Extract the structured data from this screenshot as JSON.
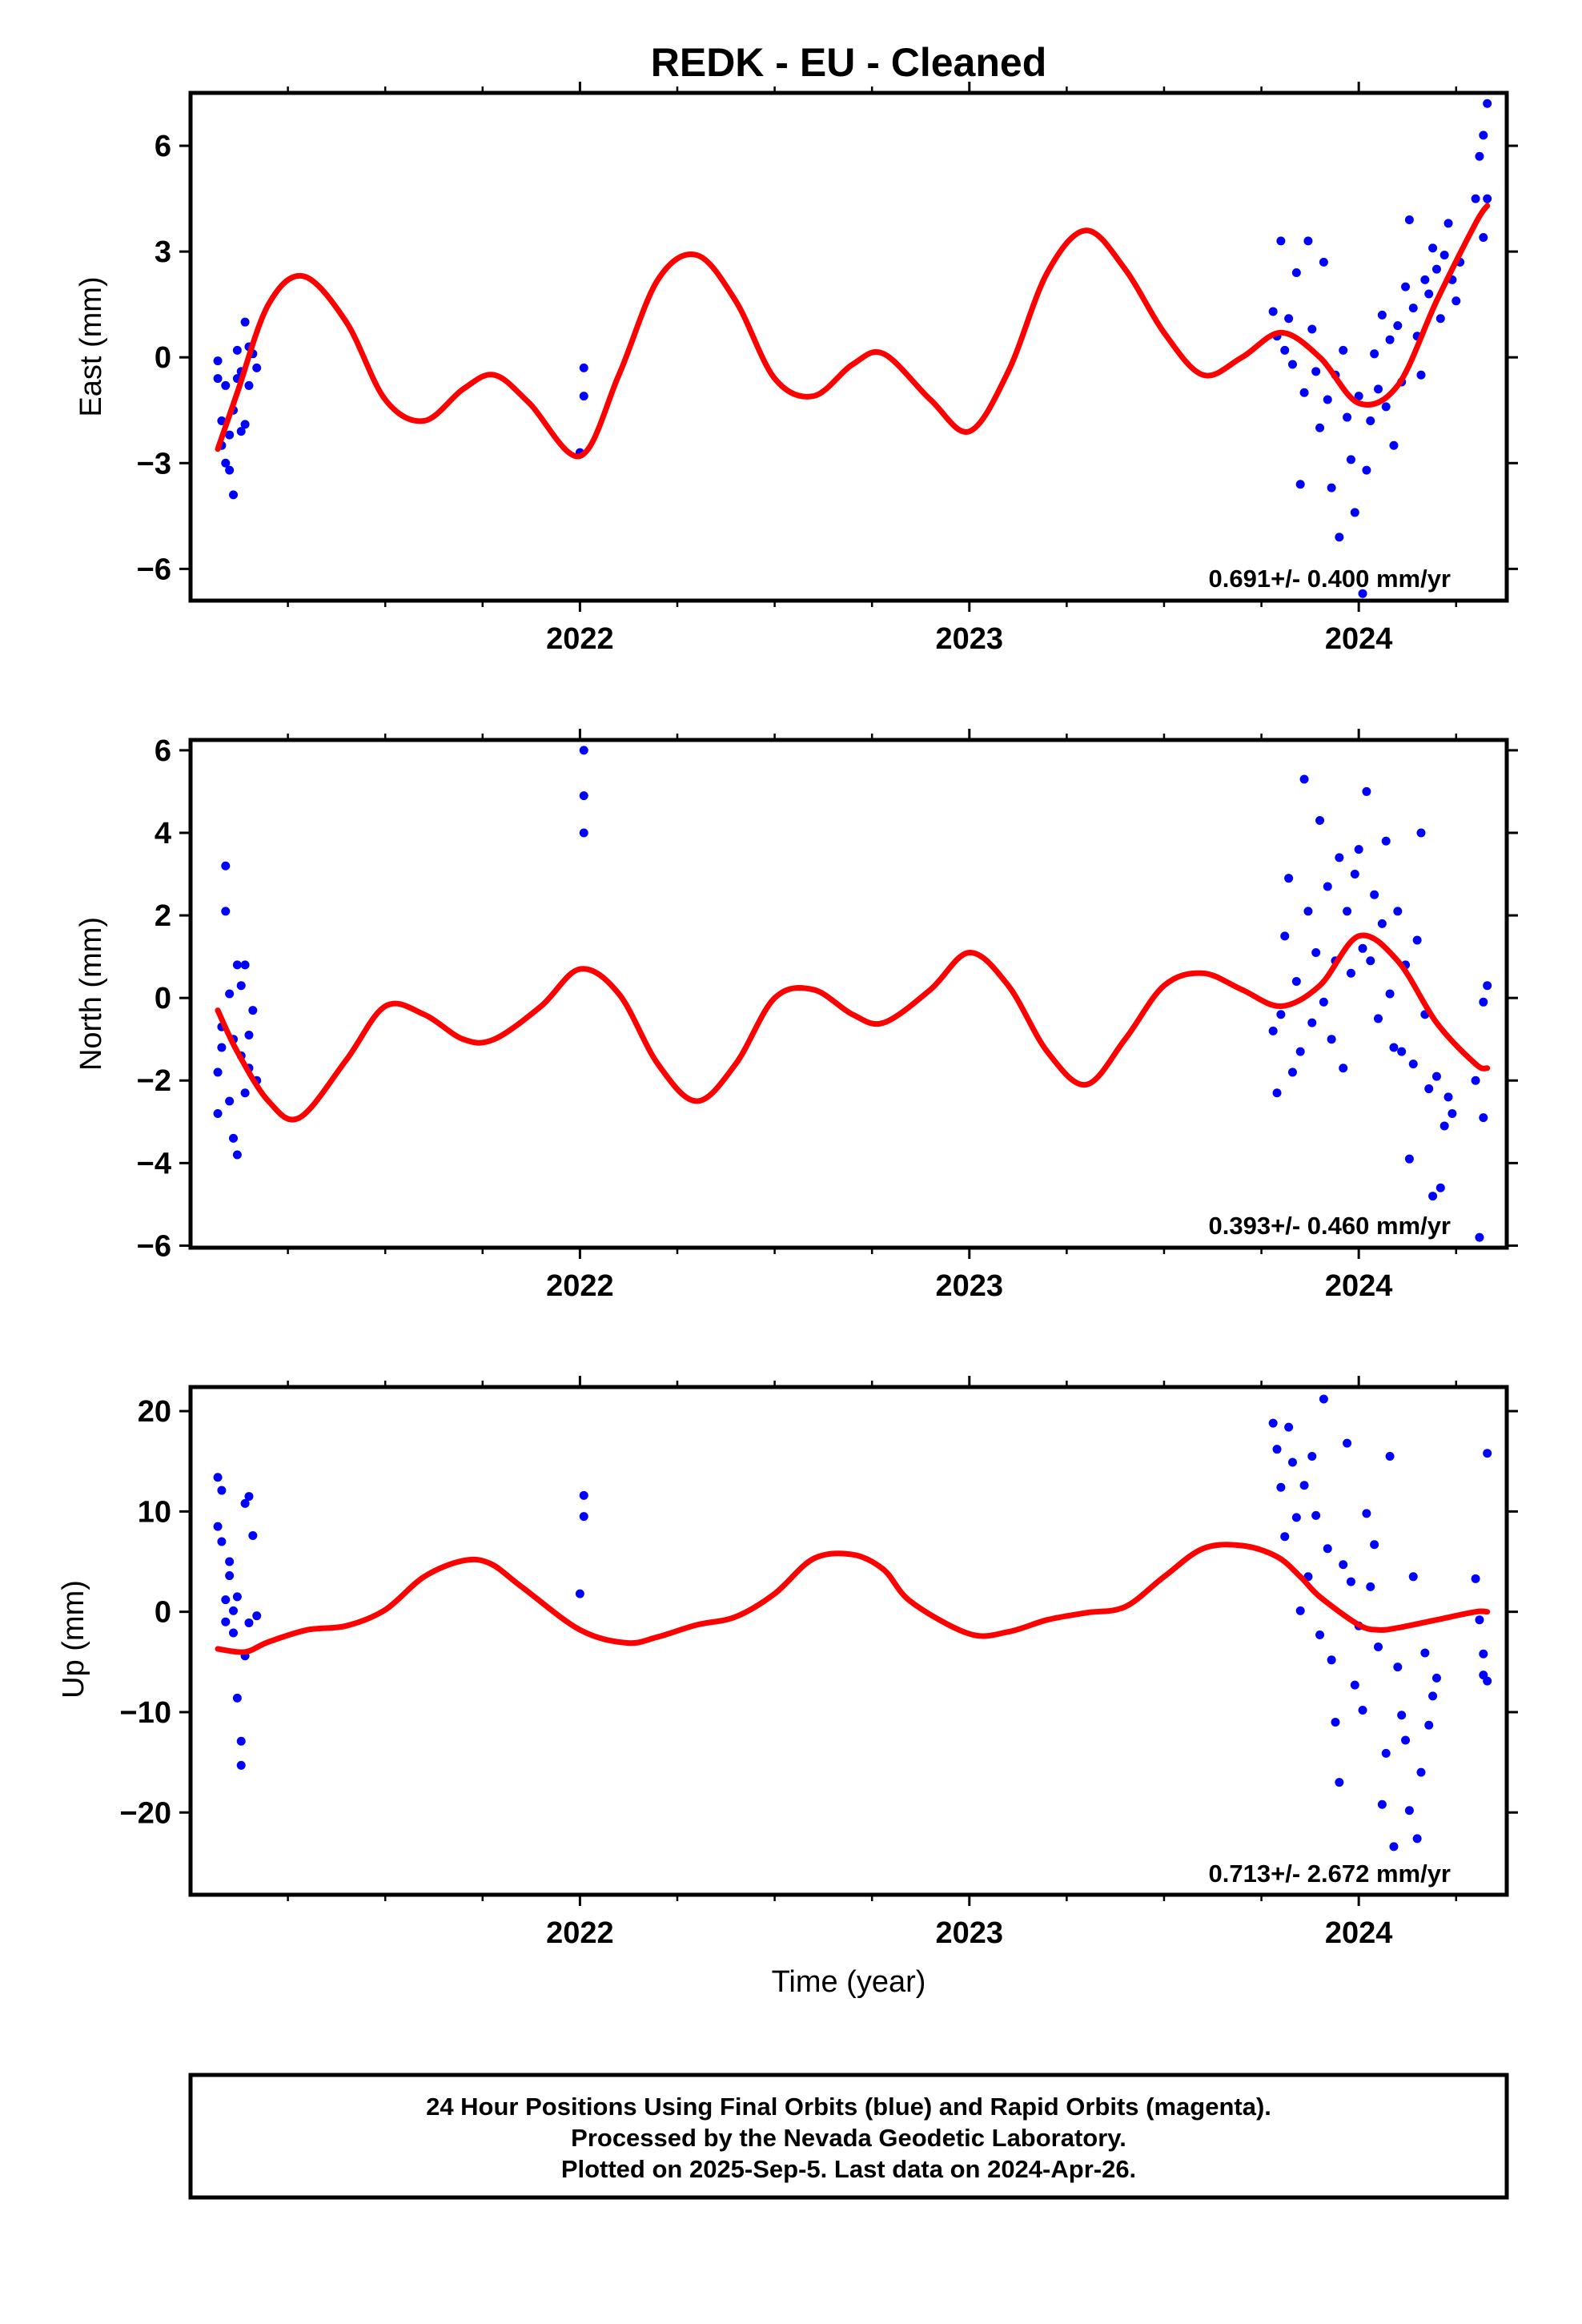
{
  "title": "REDK  - EU - Cleaned",
  "xlabel": "Time (year)",
  "footer": {
    "lines": [
      "24 Hour Positions Using Final Orbits (blue) and Rapid Orbits (magenta).",
      "Processed by the Nevada Geodetic Laboratory.",
      "Plotted on 2025-Sep-5. Last data on 2024-Apr-26."
    ]
  },
  "colors": {
    "points": "#0000ff",
    "fit": "#ff0000",
    "frame": "#000000"
  },
  "chart_data": [
    {
      "type": "scatter",
      "name": "east",
      "ylabel": "East (mm)",
      "rate_label": "0.691+/- 0.400 mm/yr",
      "xlim": [
        2021.0,
        2024.38
      ],
      "ylim": [
        -6.9,
        7.5
      ],
      "yticks": [
        -6,
        -3,
        0,
        3,
        6
      ],
      "ytick_labels": [
        "−6",
        "−3",
        "0",
        "3",
        "6"
      ],
      "xticks": [
        2022,
        2023,
        2024
      ],
      "xtick_labels": [
        "2022",
        "2023",
        "2024"
      ],
      "xminor": [
        2021.25,
        2021.5,
        2021.75,
        2022.25,
        2022.5,
        2022.75,
        2023.25,
        2023.5,
        2023.75,
        2024.25
      ],
      "fit": {
        "x": [
          2021.07,
          2021.12,
          2021.2,
          2021.29,
          2021.4,
          2021.5,
          2021.6,
          2021.7,
          2021.78,
          2021.87,
          2022.0,
          2022.1,
          2022.2,
          2022.3,
          2022.4,
          2022.5,
          2022.6,
          2022.7,
          2022.78,
          2022.9,
          2023.0,
          2023.1,
          2023.2,
          2023.3,
          2023.4,
          2023.5,
          2023.6,
          2023.7,
          2023.8,
          2023.9,
          2024.0,
          2024.1,
          2024.2,
          2024.3,
          2024.33
        ],
        "y": [
          -2.6,
          -1.0,
          1.5,
          2.3,
          1.0,
          -1.2,
          -1.8,
          -0.9,
          -0.5,
          -1.3,
          -2.8,
          -0.5,
          2.2,
          2.9,
          1.6,
          -0.6,
          -1.1,
          -0.2,
          0.1,
          -1.2,
          -2.1,
          -0.4,
          2.4,
          3.6,
          2.5,
          0.7,
          -0.5,
          0.0,
          0.7,
          0.0,
          -1.3,
          -0.8,
          1.6,
          3.8,
          4.3
        ]
      },
      "points": {
        "x": [
          2021.07,
          2021.07,
          2021.08,
          2021.08,
          2021.09,
          2021.09,
          2021.1,
          2021.1,
          2021.11,
          2021.11,
          2021.12,
          2021.12,
          2021.13,
          2021.13,
          2021.14,
          2021.14,
          2021.15,
          2021.15,
          2021.16,
          2021.17,
          2022.0,
          2022.01,
          2022.01,
          2023.78,
          2023.79,
          2023.8,
          2023.81,
          2023.82,
          2023.83,
          2023.84,
          2023.85,
          2023.86,
          2023.87,
          2023.88,
          2023.89,
          2023.9,
          2023.91,
          2023.92,
          2023.93,
          2023.94,
          2023.95,
          2023.96,
          2023.97,
          2023.98,
          2023.99,
          2024.0,
          2024.01,
          2024.02,
          2024.03,
          2024.04,
          2024.05,
          2024.06,
          2024.07,
          2024.08,
          2024.09,
          2024.1,
          2024.11,
          2024.12,
          2024.13,
          2024.14,
          2024.15,
          2024.16,
          2024.17,
          2024.18,
          2024.19,
          2024.2,
          2024.21,
          2024.22,
          2024.23,
          2024.24,
          2024.25,
          2024.26,
          2024.3,
          2024.31,
          2024.32,
          2024.32,
          2024.33,
          2024.33
        ],
        "y": [
          -0.6,
          -0.1,
          -2.5,
          -1.8,
          -3.0,
          -0.8,
          -2.2,
          -3.2,
          -1.5,
          -3.9,
          -0.6,
          0.2,
          -2.1,
          -0.4,
          1.0,
          -1.9,
          0.3,
          -0.8,
          0.1,
          -0.3,
          -2.7,
          -1.1,
          -0.3,
          1.3,
          0.6,
          3.3,
          0.2,
          1.1,
          -0.2,
          2.4,
          -3.6,
          -1.0,
          3.3,
          0.8,
          -0.4,
          -2.0,
          2.7,
          -1.2,
          -3.7,
          -0.5,
          -5.1,
          0.2,
          -1.7,
          -2.9,
          -4.4,
          -1.1,
          -6.7,
          -3.2,
          -1.8,
          0.1,
          -0.9,
          1.2,
          -1.4,
          0.5,
          -2.5,
          0.9,
          -0.7,
          2.0,
          3.9,
          1.4,
          0.6,
          -0.5,
          2.2,
          1.8,
          3.1,
          2.5,
          1.1,
          2.9,
          3.8,
          2.2,
          1.6,
          2.7,
          4.5,
          5.7,
          6.3,
          3.4,
          7.2,
          4.5
        ]
      }
    },
    {
      "type": "scatter",
      "name": "north",
      "ylabel": "North (mm)",
      "rate_label": "0.393+/- 0.460 mm/yr",
      "xlim": [
        2021.0,
        2024.38
      ],
      "ylim": [
        -6.05,
        6.25
      ],
      "yticks": [
        -6,
        -4,
        -2,
        0,
        2,
        4,
        6
      ],
      "ytick_labels": [
        "−6",
        "−4",
        "−2",
        "0",
        "2",
        "4",
        "6"
      ],
      "xticks": [
        2022,
        2023,
        2024
      ],
      "xtick_labels": [
        "2022",
        "2023",
        "2024"
      ],
      "xminor": [
        2021.25,
        2021.5,
        2021.75,
        2022.25,
        2022.5,
        2022.75,
        2023.25,
        2023.5,
        2023.75,
        2024.25
      ],
      "fit": {
        "x": [
          2021.07,
          2021.12,
          2021.2,
          2021.28,
          2021.4,
          2021.5,
          2021.6,
          2021.7,
          2021.78,
          2021.9,
          2022.0,
          2022.1,
          2022.2,
          2022.3,
          2022.4,
          2022.5,
          2022.6,
          2022.7,
          2022.78,
          2022.9,
          2023.0,
          2023.1,
          2023.2,
          2023.3,
          2023.4,
          2023.5,
          2023.6,
          2023.7,
          2023.8,
          2023.9,
          2024.0,
          2024.1,
          2024.2,
          2024.3,
          2024.33
        ],
        "y": [
          -0.3,
          -1.3,
          -2.5,
          -2.9,
          -1.5,
          -0.2,
          -0.4,
          -1.0,
          -1.0,
          -0.2,
          0.7,
          0.1,
          -1.6,
          -2.5,
          -1.6,
          0.0,
          0.2,
          -0.4,
          -0.6,
          0.2,
          1.1,
          0.3,
          -1.3,
          -2.1,
          -1.0,
          0.3,
          0.6,
          0.2,
          -0.2,
          0.3,
          1.5,
          0.9,
          -0.6,
          -1.6,
          -1.7
        ]
      },
      "points": {
        "x": [
          2021.07,
          2021.07,
          2021.08,
          2021.08,
          2021.09,
          2021.09,
          2021.1,
          2021.1,
          2021.11,
          2021.11,
          2021.12,
          2021.12,
          2021.13,
          2021.13,
          2021.14,
          2021.14,
          2021.15,
          2021.15,
          2021.16,
          2021.17,
          2022.01,
          2022.01,
          2022.01,
          2023.78,
          2023.79,
          2023.8,
          2023.81,
          2023.82,
          2023.83,
          2023.84,
          2023.85,
          2023.86,
          2023.87,
          2023.88,
          2023.89,
          2023.9,
          2023.91,
          2023.92,
          2023.93,
          2023.94,
          2023.95,
          2023.96,
          2023.97,
          2023.98,
          2023.99,
          2024.0,
          2024.01,
          2024.02,
          2024.03,
          2024.04,
          2024.05,
          2024.06,
          2024.07,
          2024.08,
          2024.09,
          2024.1,
          2024.11,
          2024.12,
          2024.13,
          2024.14,
          2024.15,
          2024.16,
          2024.17,
          2024.18,
          2024.19,
          2024.2,
          2024.21,
          2024.22,
          2024.23,
          2024.24,
          2024.3,
          2024.31,
          2024.32,
          2024.32,
          2024.33
        ],
        "y": [
          -2.8,
          -1.8,
          -0.7,
          -1.2,
          3.2,
          2.1,
          0.1,
          -2.5,
          -1.0,
          -3.4,
          0.8,
          -3.8,
          0.3,
          -1.4,
          0.8,
          -2.3,
          -0.9,
          -1.7,
          -0.3,
          -2.0,
          4.0,
          4.9,
          6.0,
          -0.8,
          -2.3,
          -0.4,
          1.5,
          2.9,
          -1.8,
          0.4,
          -1.3,
          5.3,
          2.1,
          -0.6,
          1.1,
          4.3,
          -0.1,
          2.7,
          -1.0,
          0.9,
          3.4,
          -1.7,
          2.1,
          0.6,
          3.0,
          3.6,
          1.2,
          5.0,
          0.9,
          2.5,
          -0.5,
          1.8,
          3.8,
          0.1,
          -1.2,
          2.1,
          -1.3,
          0.8,
          -3.9,
          -1.6,
          1.4,
          4.0,
          -0.4,
          -2.2,
          -4.8,
          -1.9,
          -4.6,
          -3.1,
          -2.4,
          -2.8,
          -2.0,
          -5.8,
          -0.1,
          -2.9,
          0.3
        ]
      }
    },
    {
      "type": "scatter",
      "name": "up",
      "ylabel": "Up (mm)",
      "rate_label": "0.713+/- 2.672 mm/yr",
      "xlim": [
        2021.0,
        2024.38
      ],
      "ylim": [
        -28.2,
        22.4
      ],
      "yticks": [
        -20,
        -10,
        0,
        10,
        20
      ],
      "ytick_labels": [
        "−20",
        "−10",
        "0",
        "10",
        "20"
      ],
      "xticks": [
        2022,
        2023,
        2024
      ],
      "xtick_labels": [
        "2022",
        "2023",
        "2024"
      ],
      "xminor": [
        2021.25,
        2021.5,
        2021.75,
        2022.25,
        2022.5,
        2022.75,
        2023.25,
        2023.5,
        2023.75,
        2024.25
      ],
      "fit": {
        "x": [
          2021.07,
          2021.14,
          2021.2,
          2021.3,
          2021.4,
          2021.5,
          2021.6,
          2021.7,
          2021.77,
          2021.85,
          2022.0,
          2022.12,
          2022.2,
          2022.3,
          2022.4,
          2022.5,
          2022.6,
          2022.7,
          2022.78,
          2022.85,
          2023.0,
          2023.1,
          2023.2,
          2023.3,
          2023.4,
          2023.5,
          2023.6,
          2023.7,
          2023.79,
          2023.85,
          2023.9,
          2024.0,
          2024.05,
          2024.1,
          2024.2,
          2024.3,
          2024.33
        ],
        "y": [
          -3.7,
          -4.0,
          -3.0,
          -1.8,
          -1.4,
          0.2,
          3.5,
          5.1,
          4.8,
          2.5,
          -1.8,
          -3.1,
          -2.5,
          -1.3,
          -0.5,
          1.8,
          5.3,
          5.7,
          4.2,
          1.0,
          -2.2,
          -2.0,
          -0.8,
          -0.1,
          0.5,
          3.5,
          6.3,
          6.6,
          5.5,
          3.5,
          1.5,
          -1.3,
          -1.8,
          -1.6,
          -0.8,
          0.0,
          0.0
        ]
      },
      "points": {
        "x": [
          2021.07,
          2021.07,
          2021.08,
          2021.08,
          2021.09,
          2021.09,
          2021.1,
          2021.1,
          2021.11,
          2021.11,
          2021.12,
          2021.12,
          2021.13,
          2021.13,
          2021.14,
          2021.14,
          2021.15,
          2021.15,
          2021.16,
          2021.17,
          2022.0,
          2022.01,
          2022.01,
          2023.78,
          2023.79,
          2023.8,
          2023.81,
          2023.82,
          2023.83,
          2023.84,
          2023.85,
          2023.86,
          2023.87,
          2023.88,
          2023.89,
          2023.9,
          2023.91,
          2023.92,
          2023.93,
          2023.94,
          2023.95,
          2023.96,
          2023.97,
          2023.98,
          2023.99,
          2024.0,
          2024.01,
          2024.02,
          2024.03,
          2024.04,
          2024.05,
          2024.06,
          2024.07,
          2024.08,
          2024.09,
          2024.1,
          2024.11,
          2024.12,
          2024.13,
          2024.14,
          2024.15,
          2024.16,
          2024.17,
          2024.18,
          2024.19,
          2024.2,
          2024.3,
          2024.31,
          2024.32,
          2024.32,
          2024.33,
          2024.33
        ],
        "y": [
          8.5,
          13.4,
          12.1,
          7.0,
          1.2,
          -1.0,
          3.6,
          5.0,
          0.1,
          -2.1,
          1.5,
          -8.6,
          -12.9,
          -15.3,
          -4.4,
          10.8,
          -1.1,
          11.5,
          7.6,
          -0.4,
          1.8,
          9.5,
          11.6,
          18.8,
          16.2,
          12.4,
          7.5,
          18.4,
          14.9,
          9.4,
          0.1,
          12.6,
          3.5,
          15.5,
          9.6,
          -2.3,
          21.2,
          6.3,
          -4.8,
          -11.0,
          -17.0,
          4.7,
          16.8,
          3.0,
          -7.3,
          -1.4,
          -9.8,
          9.8,
          2.5,
          6.7,
          -3.5,
          -19.2,
          -14.1,
          15.5,
          -23.4,
          -5.5,
          -10.3,
          -12.8,
          -19.8,
          3.5,
          -22.6,
          -16.0,
          -4.1,
          -11.3,
          -8.4,
          -6.6,
          3.3,
          -0.8,
          -6.3,
          -4.2,
          15.8,
          -6.9
        ]
      }
    }
  ]
}
